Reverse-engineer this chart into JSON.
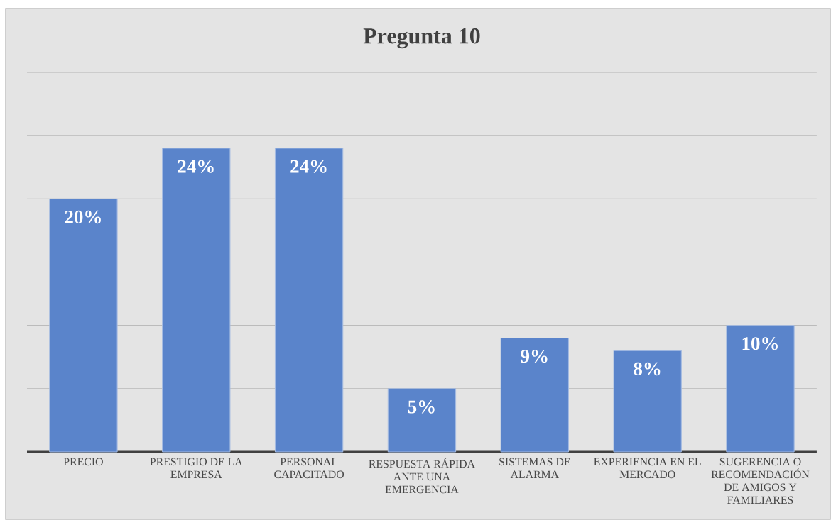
{
  "chart_data": {
    "type": "bar",
    "title": "Pregunta 10",
    "categories": [
      "PRECIO",
      "PRESTIGIO DE LA EMPRESA",
      "PERSONAL CAPACITADO",
      "RESPUESTA RÁPIDA ANTE UNA EMERGENCIA",
      "SISTEMAS DE ALARMA",
      "EXPERIENCIA EN EL MERCADO",
      "SUGERENCIA O RECOMENDACIÓN DE AMIGOS Y FAMILIARES"
    ],
    "values": [
      20,
      24,
      24,
      5,
      9,
      8,
      10
    ],
    "value_labels": [
      "20%",
      "24%",
      "24%",
      "5%",
      "9%",
      "8%",
      "10%"
    ],
    "color": "#5a84cb",
    "ylim": [
      0,
      30
    ],
    "yticks": [
      {
        "value": 0,
        "label": null
      },
      {
        "value": 5,
        "label": null
      },
      {
        "value": 10,
        "label": null
      },
      {
        "value": 15,
        "label": null
      },
      {
        "value": 20,
        "label": null
      },
      {
        "value": 25,
        "label": null
      },
      {
        "value": 30,
        "label": null
      }
    ],
    "grid": "y",
    "tick_labels": "x"
  }
}
